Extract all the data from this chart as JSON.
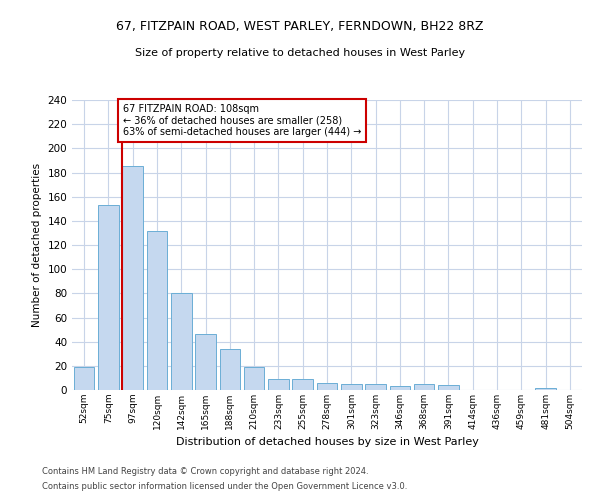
{
  "title1": "67, FITZPAIN ROAD, WEST PARLEY, FERNDOWN, BH22 8RZ",
  "title2": "Size of property relative to detached houses in West Parley",
  "xlabel": "Distribution of detached houses by size in West Parley",
  "ylabel": "Number of detached properties",
  "categories": [
    "52sqm",
    "75sqm",
    "97sqm",
    "120sqm",
    "142sqm",
    "165sqm",
    "188sqm",
    "210sqm",
    "233sqm",
    "255sqm",
    "278sqm",
    "301sqm",
    "323sqm",
    "346sqm",
    "368sqm",
    "391sqm",
    "414sqm",
    "436sqm",
    "459sqm",
    "481sqm",
    "504sqm"
  ],
  "values": [
    19,
    153,
    185,
    132,
    80,
    46,
    34,
    19,
    9,
    9,
    6,
    5,
    5,
    3,
    5,
    4,
    0,
    0,
    0,
    2,
    0
  ],
  "bar_color": "#c5d8ef",
  "bar_edge_color": "#6baed6",
  "highlight_line_color": "#cc0000",
  "annotation_text": "67 FITZPAIN ROAD: 108sqm\n← 36% of detached houses are smaller (258)\n63% of semi-detached houses are larger (444) →",
  "annotation_box_color": "#ffffff",
  "annotation_box_edge_color": "#cc0000",
  "ylim": [
    0,
    240
  ],
  "yticks": [
    0,
    20,
    40,
    60,
    80,
    100,
    120,
    140,
    160,
    180,
    200,
    220,
    240
  ],
  "footer1": "Contains HM Land Registry data © Crown copyright and database right 2024.",
  "footer2": "Contains public sector information licensed under the Open Government Licence v3.0.",
  "bg_color": "#ffffff",
  "grid_color": "#c8d4e8"
}
